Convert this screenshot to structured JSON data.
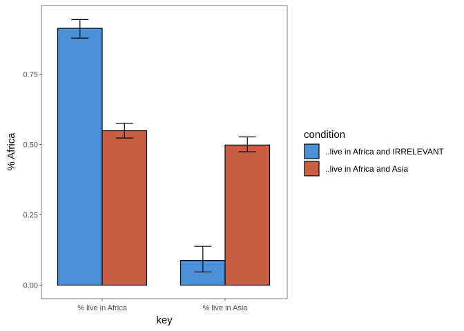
{
  "chart_data": {
    "type": "bar",
    "xlabel": "key",
    "ylabel": "% Africa",
    "categories": [
      "% live in Africa",
      "% live in Asia"
    ],
    "ylim": [
      0,
      0.97
    ],
    "yticks": [
      0.0,
      0.25,
      0.5,
      0.75
    ],
    "ytick_labels": [
      "0.00",
      "0.25",
      "0.50",
      "0.75"
    ],
    "grid": false,
    "legend": {
      "title": "condition",
      "placement": "right"
    },
    "series": [
      {
        "name": "..live in Africa and IRRELEVANT",
        "color": "#4a90d4",
        "values": [
          0.913,
          0.088
        ],
        "error_low": [
          0.878,
          0.047
        ],
        "error_high": [
          0.944,
          0.138
        ]
      },
      {
        "name": "..live in Africa and Asia",
        "color": "#c95f42",
        "values": [
          0.549,
          0.498
        ],
        "error_low": [
          0.523,
          0.474
        ],
        "error_high": [
          0.575,
          0.527
        ]
      }
    ]
  }
}
